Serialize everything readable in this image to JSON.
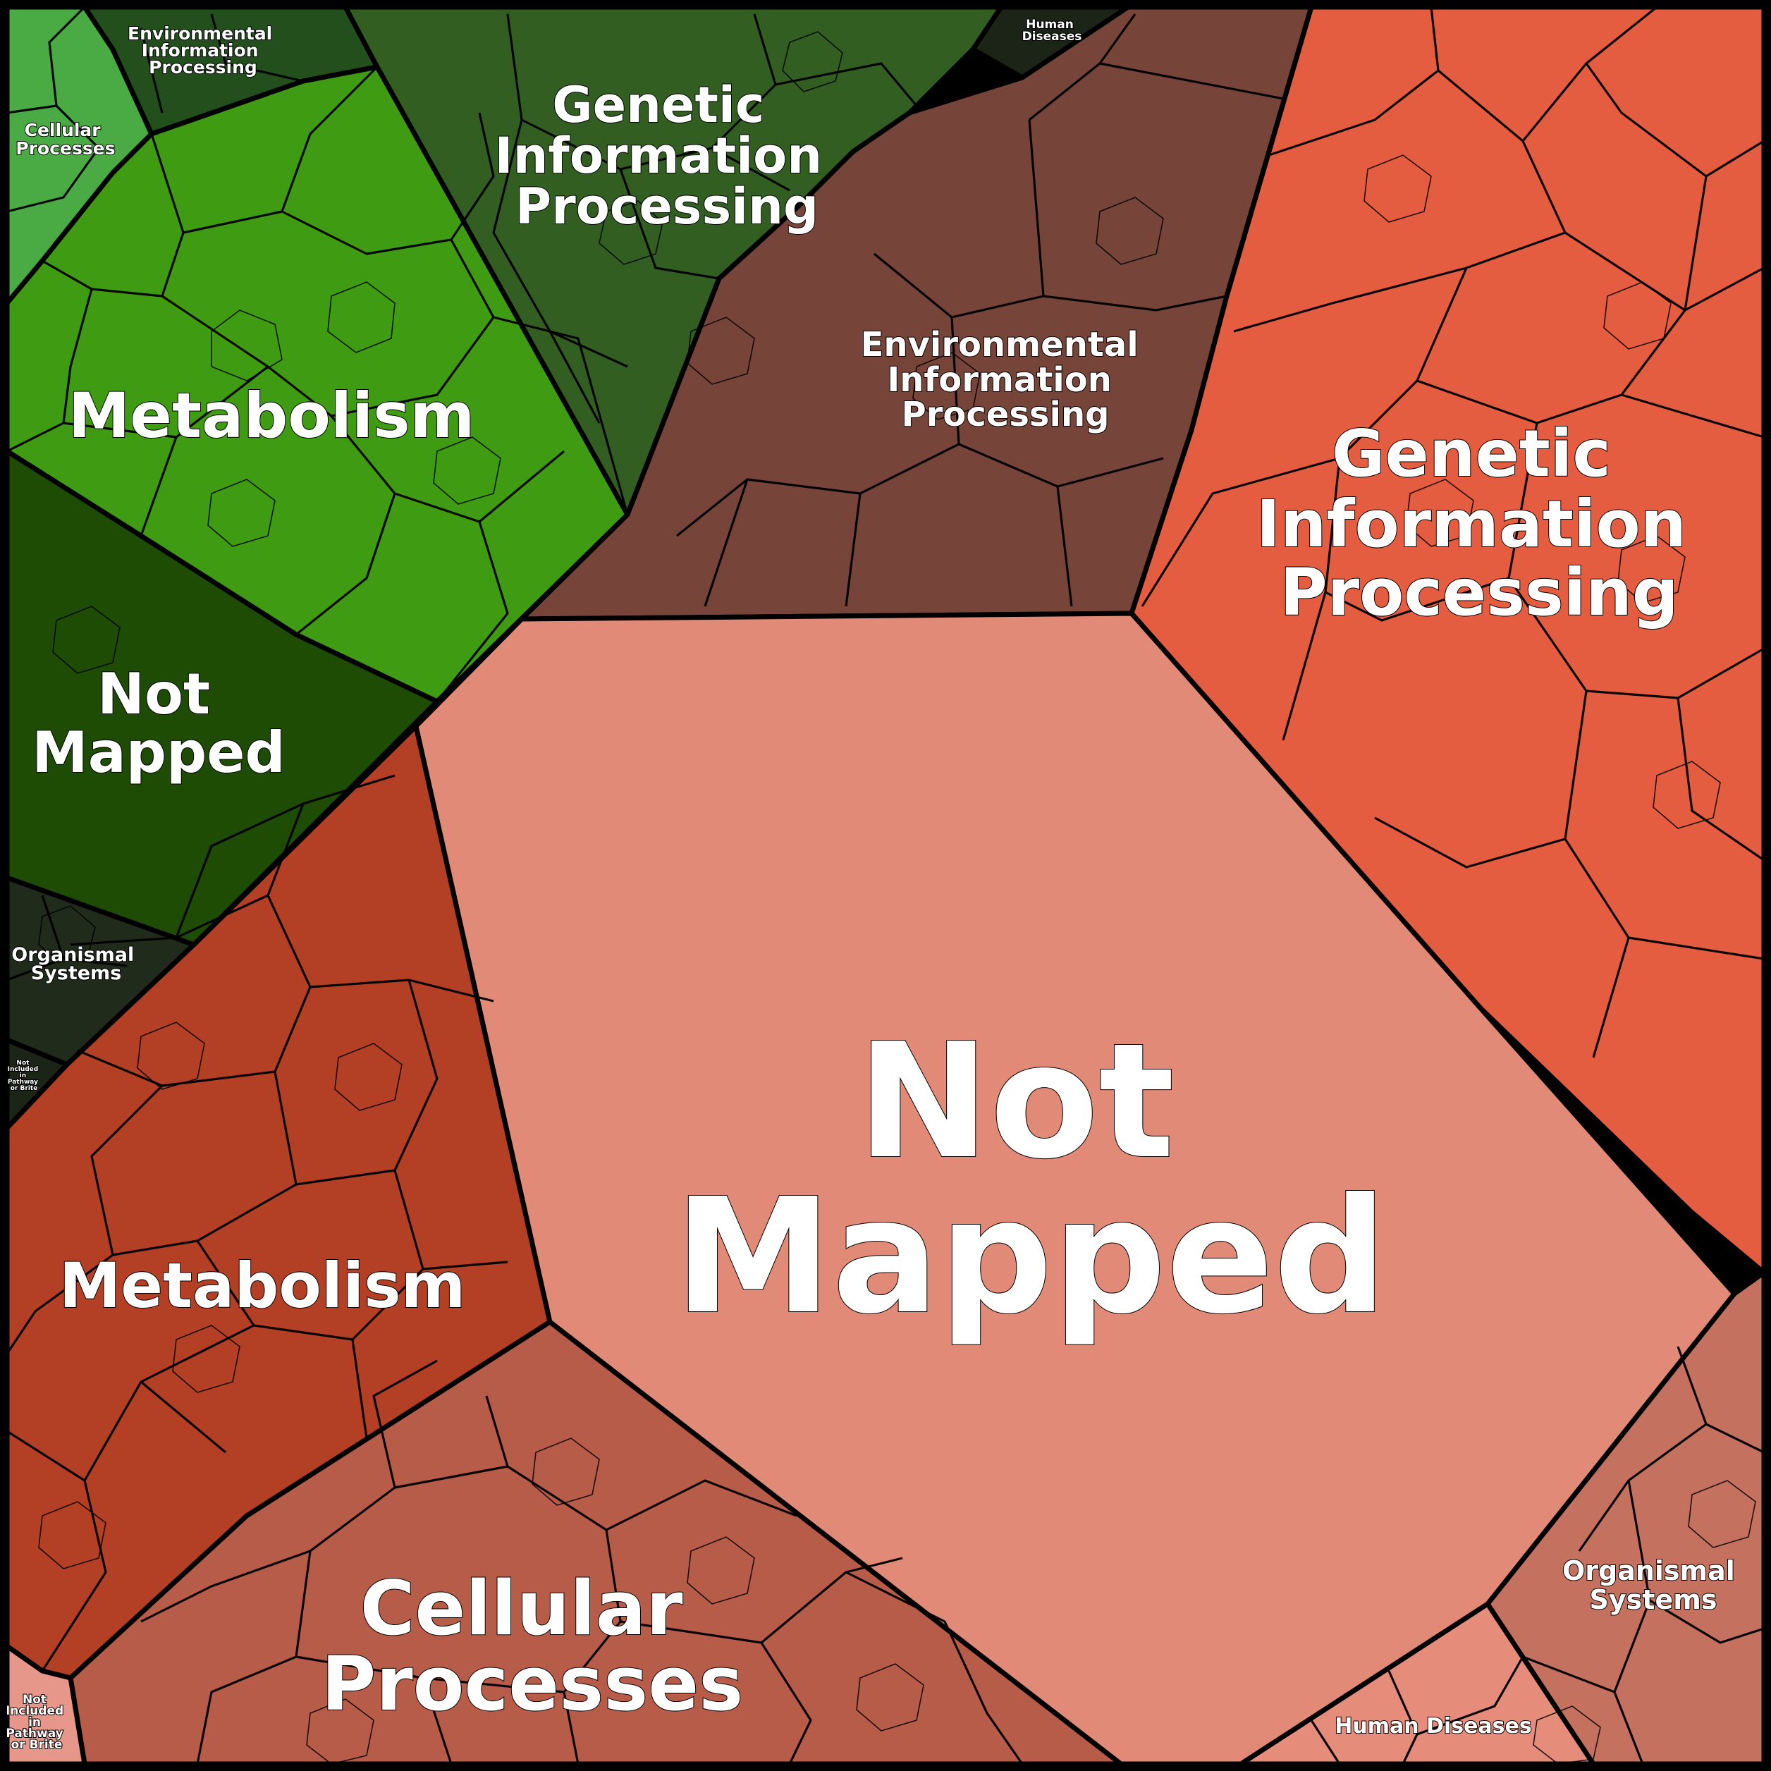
{
  "colors": {
    "background": "#000000",
    "green_bright": "#4aab45",
    "green_metabolism": "#3f9c12",
    "green_genetic": "#335e22",
    "green_not_mapped": "#1f4c05",
    "green_env": "#224f1c",
    "green_organismal": "#202b1c",
    "green_human": "#1b2417",
    "brown_env": "#774439",
    "coral_genetic": "#e55d40",
    "red_metabolism": "#b34025",
    "rust_cellular": "#b85c4a",
    "salmon_not_mapped": "#e18a78",
    "salmon_organismal": "#c4715f",
    "pink_human": "#e58d7a",
    "pink_not_included": "#e7968a"
  },
  "labels": {
    "green_env": [
      "Environmental",
      "Information",
      "Processing"
    ],
    "green_human": [
      "Human",
      "Diseases"
    ],
    "green_cellular": [
      "Cellular",
      "Processes"
    ],
    "green_genetic": [
      "Genetic",
      "Information",
      "Processing"
    ],
    "green_metabolism": [
      "Metabolism"
    ],
    "green_not_mapped": [
      "Not",
      "Mapped"
    ],
    "green_organismal": [
      "Organismal",
      "Systems"
    ],
    "green_not_included": [
      "Not",
      "Included",
      "in",
      "Pathway",
      "or Brite"
    ],
    "brown_env": [
      "Environmental",
      "Information",
      "Processing"
    ],
    "coral_genetic": [
      "Genetic",
      "Information",
      "Processing"
    ],
    "salmon_not_mapped": [
      "Not",
      "Mapped"
    ],
    "red_metabolism": [
      "Metabolism"
    ],
    "rust_cellular": [
      "Cellular",
      "Processes"
    ],
    "salmon_organismal": [
      "Organismal",
      "Systems"
    ],
    "pink_human": [
      "Human Diseases"
    ],
    "pink_not_included": [
      "Not",
      "Included",
      "in",
      "Pathway",
      "or Brite"
    ]
  }
}
